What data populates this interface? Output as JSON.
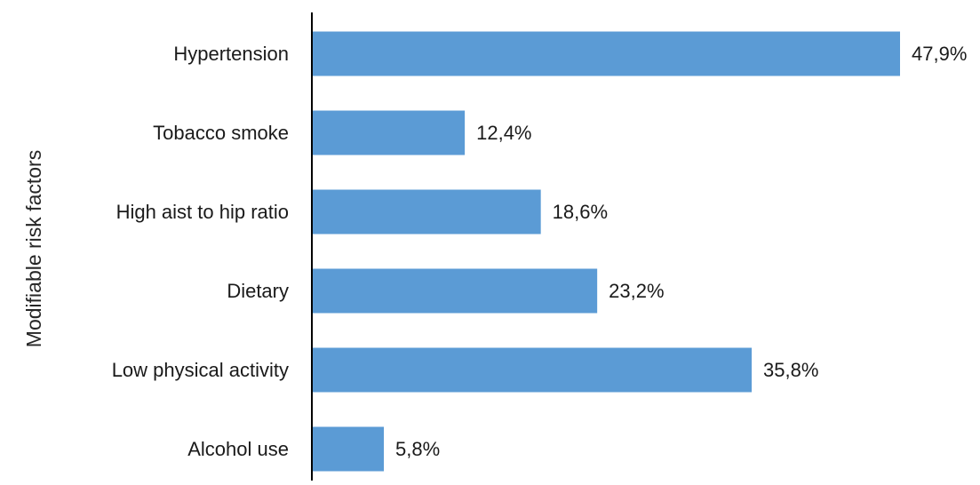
{
  "chart_data": {
    "type": "bar",
    "orientation": "horizontal",
    "title": "",
    "xlabel": "",
    "ylabel": "Modifiable risk factors",
    "categories": [
      "Hypertension",
      "Tobacco smoke",
      "High aist to hip ratio",
      "Dietary",
      "Low physical activity",
      "Alcohol use"
    ],
    "values": [
      47.9,
      12.4,
      18.6,
      23.2,
      35.8,
      5.8
    ],
    "value_labels": [
      "47,9%",
      "12,4%",
      "18,6%",
      "23,2%",
      "35,8%",
      "5,8%"
    ],
    "unit": "%",
    "xlim": [
      0,
      53
    ],
    "grid": false,
    "legend": "none",
    "bar_color": "#5B9BD5",
    "axis_color": "#000000"
  }
}
